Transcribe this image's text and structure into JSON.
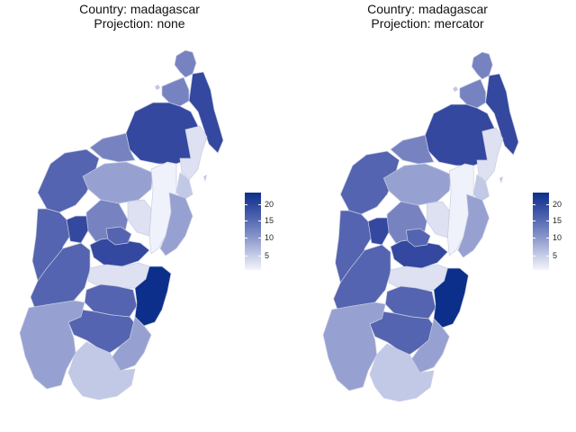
{
  "panels": [
    {
      "title_line1": "Country: madagascar",
      "title_line2": "Projection: none"
    },
    {
      "title_line1": "Country: madagascar",
      "title_line2": "Projection: mercator"
    }
  ],
  "legend": {
    "labels": [
      "20",
      "15",
      "10",
      "5"
    ]
  },
  "colors": {
    "high": "#0b2f8a",
    "dark": "#34489f",
    "mid_dark": "#5464b0",
    "mid": "#7783c1",
    "mid_light": "#97a1d1",
    "light": "#a5aed8",
    "pale": "#c2c9e6",
    "very_pale": "#dde1f1",
    "lowest": "#f0f2fb"
  }
}
